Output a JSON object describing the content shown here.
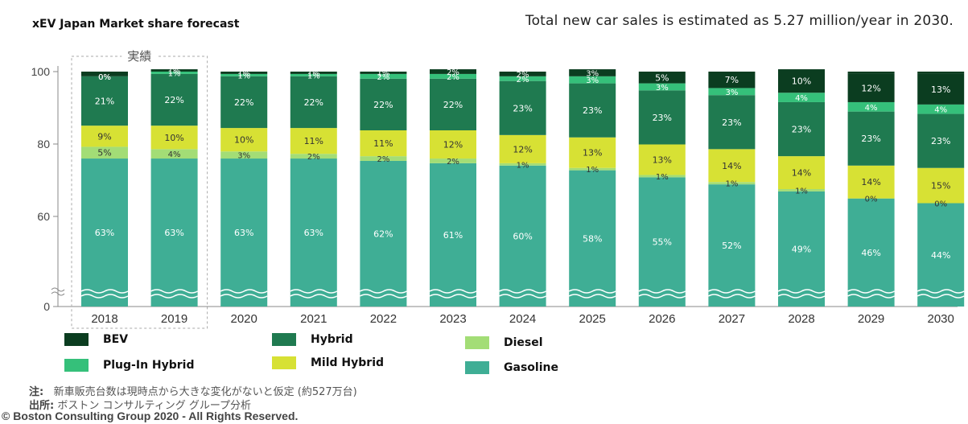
{
  "chart_data": {
    "type": "bar",
    "stacked": true,
    "title": "xEV Japan Market share forecast",
    "subtitle": "Total new car sales is estimated as 5.27 million/year in 2030.",
    "categories": [
      "2018",
      "2019",
      "2020",
      "2021",
      "2022",
      "2023",
      "2024",
      "2025",
      "2026",
      "2027",
      "2028",
      "2029",
      "2030"
    ],
    "y_ticks": [
      "0",
      "60",
      "80",
      "100"
    ],
    "y_axis_break": true,
    "actual_label": "実績",
    "actual_categories": [
      "2018",
      "2019"
    ],
    "series": [
      {
        "name": "Gasoline",
        "color": "#3fae95",
        "values": [
          63,
          63,
          63,
          63,
          62,
          61,
          60,
          58,
          55,
          52,
          49,
          46,
          44
        ]
      },
      {
        "name": "Diesel",
        "color": "#a3dd76",
        "values": [
          5,
          4,
          3,
          2,
          2,
          2,
          1,
          1,
          1,
          1,
          1,
          0,
          0
        ]
      },
      {
        "name": "Mild Hybrid",
        "color": "#d7e134",
        "values": [
          9,
          10,
          10,
          11,
          11,
          12,
          12,
          13,
          13,
          14,
          14,
          14,
          15
        ]
      },
      {
        "name": "Hybrid",
        "color": "#1f7a50",
        "values": [
          21,
          22,
          22,
          22,
          22,
          22,
          23,
          23,
          23,
          23,
          23,
          23,
          23
        ]
      },
      {
        "name": "Plug-In Hybrid",
        "color": "#35c07a",
        "values": [
          0,
          1,
          1,
          1,
          2,
          2,
          2,
          3,
          3,
          3,
          4,
          4,
          4
        ]
      },
      {
        "name": "BEV",
        "color": "#0b3d20",
        "values": [
          0,
          1,
          1,
          1,
          1,
          2,
          2,
          3,
          5,
          7,
          10,
          12,
          13
        ]
      }
    ],
    "data_labels": {
      "Gasoline": [
        "63%",
        "63%",
        "63%",
        "63%",
        "62%",
        "61%",
        "60%",
        "58%",
        "55%",
        "52%",
        "49%",
        "46%",
        "44%"
      ],
      "Diesel": [
        "5%",
        "4%",
        "3%",
        "2%",
        "2%",
        "2%",
        "1%",
        "1%",
        "1%",
        "1%",
        "1%",
        "0%",
        "0%"
      ],
      "Mild Hybrid": [
        "9%",
        "10%",
        "10%",
        "11%",
        "11%",
        "12%",
        "12%",
        "13%",
        "13%",
        "14%",
        "14%",
        "14%",
        "15%"
      ],
      "Hybrid": [
        "21%",
        "22%",
        "22%",
        "22%",
        "22%",
        "22%",
        "23%",
        "23%",
        "23%",
        "23%",
        "23%",
        "23%",
        "23%"
      ],
      "Plug-In Hybrid": [
        "0%",
        "1%",
        "1%",
        "1%",
        "2%",
        "2%",
        "2%",
        "3%",
        "3%",
        "3%",
        "4%",
        "4%",
        "4%"
      ],
      "BEV": [
        "0%",
        "1%",
        "1%",
        "1%",
        "1%",
        "2%",
        "2%",
        "3%",
        "5%",
        "7%",
        "10%",
        "12%",
        "13%"
      ]
    }
  },
  "legend": [
    {
      "label": "BEV",
      "color": "#0b3d20"
    },
    {
      "label": "Hybrid",
      "color": "#1f7a50"
    },
    {
      "label": "Diesel",
      "color": "#a3dd76"
    },
    {
      "label": "Plug-In Hybrid",
      "color": "#35c07a"
    },
    {
      "label": "Mild Hybrid",
      "color": "#d7e134"
    },
    {
      "label": "Gasoline",
      "color": "#3fae95"
    }
  ],
  "notes": {
    "note_label": "注:",
    "note_text": "新車販売台数は現時点から大きな変化がないと仮定 (約527万台)",
    "source_label": "出所:",
    "source_text": "ボストン コンサルティング グループ分析",
    "copyright": "© Boston Consulting Group 2020 - All Rights Reserved."
  }
}
